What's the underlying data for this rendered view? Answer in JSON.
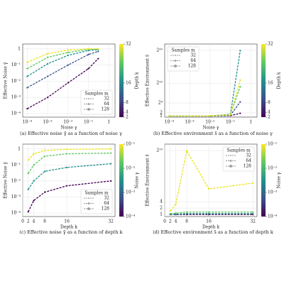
{
  "chart_data": [
    {
      "type": "line",
      "caption": "(a) Effective noise γ̃ as a function of noise γ",
      "xlabel": "Noise  γ",
      "ylabel": "Effective Noise  γ̃",
      "xlog": true,
      "ylog": true,
      "grid": true,
      "x": [
        0.0001,
        0.001,
        0.01,
        0.1,
        0.3
      ],
      "xlim": [
        6e-05,
        2
      ],
      "xticks": [
        {
          "value": 0.0001,
          "label": "10⁻⁴"
        },
        {
          "value": 0.001,
          "label": "10⁻³"
        },
        {
          "value": 0.01,
          "label": "10⁻²"
        },
        {
          "value": 0.1,
          "label": "10⁻¹"
        },
        1
      ],
      "ylim": [
        6e-05,
        2
      ],
      "yticks": [
        {
          "value": 0.0001,
          "label": "10⁻⁴"
        },
        {
          "value": 0.001,
          "label": "10⁻³"
        },
        {
          "value": 0.01,
          "label": "10⁻²"
        },
        {
          "value": 0.1,
          "label": "10⁻¹"
        },
        1
      ],
      "series": [
        {
          "color": "#440154",
          "values": [
            0.0002,
            0.001,
            0.008,
            0.06,
            0.25
          ]
        },
        {
          "color": "#3b528b",
          "values": [
            0.004,
            0.02,
            0.1,
            0.45,
            0.7
          ]
        },
        {
          "color": "#21918c",
          "values": [
            0.02,
            0.12,
            0.4,
            0.8,
            0.9
          ]
        },
        {
          "color": "#5ec962",
          "values": [
            0.06,
            0.3,
            0.6,
            0.95,
            0.95
          ]
        },
        {
          "color": "#e8e419",
          "values": [
            0.15,
            0.5,
            0.85,
            1,
            1
          ]
        }
      ],
      "legend_title": "Samples  m",
      "legend_entries": [
        32,
        64,
        128
      ],
      "legend_position": "lower right",
      "colorbar": {
        "label": "Depth  k",
        "lim": [
          2,
          32
        ],
        "log": false,
        "ticks": [
          2,
          4,
          8,
          16,
          32
        ]
      }
    },
    {
      "type": "line",
      "caption": "(b) Effective environment s̃ as a function of noise γ",
      "xlabel": "Noise  γ",
      "ylabel": "Effective Environment  s̃",
      "xlog": true,
      "ylog": true,
      "grid": true,
      "x": [
        0.0001,
        0.001,
        0.01,
        0.1,
        0.3
      ],
      "xlim": [
        6e-05,
        2
      ],
      "xticks": [
        {
          "value": 0.0001,
          "label": "10⁻⁴"
        },
        {
          "value": 0.001,
          "label": "10⁻³"
        },
        {
          "value": 0.01,
          "label": "10⁻²"
        },
        {
          "value": 0.1,
          "label": "10⁻¹"
        },
        1
      ],
      "ylim": [
        0.8,
        4000000
      ],
      "yticks": [
        1,
        2,
        {
          "value": 16,
          "label": "2⁴"
        },
        {
          "value": 1024,
          "label": "2¹⁰"
        },
        {
          "value": 1048576,
          "label": "2²⁰"
        }
      ],
      "series": [
        {
          "color": "#440154",
          "values": [
            1,
            1,
            1,
            1.1,
            1.8
          ]
        },
        {
          "color": "#3b528b",
          "values": [
            1,
            1,
            1,
            1.2,
            20
          ]
        },
        {
          "color": "#21918c",
          "values": [
            1,
            1,
            1.05,
            1.5,
            1000000
          ]
        },
        {
          "color": "#5ec962",
          "values": [
            1,
            1,
            1.05,
            1.4,
            500
          ]
        },
        {
          "color": "#e8e419",
          "values": [
            1,
            1,
            1.05,
            1.3,
            2000
          ]
        }
      ],
      "legend_title": "Samples  m",
      "legend_entries": [
        32,
        64,
        128
      ],
      "legend_position": "upper left",
      "colorbar": {
        "label": "Depth  k",
        "lim": [
          2,
          32
        ],
        "log": false,
        "ticks": [
          2,
          4,
          8,
          16,
          32
        ]
      }
    },
    {
      "type": "line",
      "caption": "(c) Effective noise γ̃ as a function of depth k",
      "xlabel": "Depth  k",
      "ylabel": "Effective Noise  γ̃",
      "xlog": false,
      "ylog": true,
      "grid": true,
      "x": [
        2,
        4,
        8,
        16,
        32
      ],
      "xlim": [
        0,
        33.5
      ],
      "xticks": [
        0,
        2,
        4,
        8,
        16,
        32
      ],
      "ylim": [
        6e-05,
        2
      ],
      "yticks": [
        {
          "value": 0.0001,
          "label": "10⁻⁴"
        },
        {
          "value": 0.001,
          "label": "10⁻³"
        },
        {
          "value": 0.01,
          "label": "10⁻²"
        },
        {
          "value": 0.1,
          "label": "10⁻¹"
        },
        1
      ],
      "series": [
        {
          "color": "#440154",
          "values": [
            0.00012,
            0.0006,
            0.002,
            0.005,
            0.01
          ]
        },
        {
          "color": "#21918c",
          "values": [
            0.003,
            0.01,
            0.04,
            0.07,
            0.12
          ]
        },
        {
          "color": "#5ec962",
          "values": [
            0.03,
            0.1,
            0.35,
            0.5,
            0.55
          ]
        },
        {
          "color": "#e8e419",
          "values": [
            0.2,
            0.5,
            0.8,
            0.95,
            1
          ]
        }
      ],
      "legend_title": "Samples  m",
      "legend_entries": [
        32,
        64,
        128
      ],
      "legend_position": "lower right",
      "colorbar": {
        "label": "Noise  γ",
        "lim": [
          0.0001,
          0.1
        ],
        "log": true,
        "ticks": [
          {
            "value": 0.0001,
            "label": "10⁻⁴"
          },
          {
            "value": 0.001,
            "label": "10⁻³"
          },
          {
            "value": 0.01,
            "label": "10⁻²"
          },
          {
            "value": 0.1,
            "label": "10⁻¹"
          }
        ]
      }
    },
    {
      "type": "line",
      "caption": "(d) Effective environment s̃ as a function of depth k",
      "xlabel": "Depth  k",
      "ylabel": "Effective Environment  s̃",
      "xlog": false,
      "ylog": true,
      "grid": true,
      "x": [
        2,
        4,
        8,
        16,
        32
      ],
      "xlim": [
        0,
        33.5
      ],
      "xticks": [
        0,
        2,
        4,
        8,
        16,
        32
      ],
      "ylim": [
        0.8,
        2048
      ],
      "yticks": [
        1,
        2,
        4,
        {
          "value": 1024,
          "label": "2¹⁰"
        }
      ],
      "series": [
        {
          "color": "#440154",
          "values": [
            1,
            1,
            1,
            1,
            1
          ]
        },
        {
          "color": "#21918c",
          "values": [
            1.02,
            1.05,
            1.1,
            1.1,
            1.1
          ]
        },
        {
          "color": "#5ec962",
          "values": [
            1.1,
            1.15,
            1.3,
            1.3,
            1.3
          ]
        },
        {
          "color": "#e8e419",
          "values": [
            1.5,
            3,
            1000,
            16,
            30
          ]
        }
      ],
      "legend_title": "Samples  m",
      "legend_entries": [
        32,
        64,
        128
      ],
      "legend_position": "upper right",
      "colorbar": {
        "label": "Noise  γ",
        "lim": [
          0.0001,
          0.1
        ],
        "log": true,
        "ticks": [
          {
            "value": 0.0001,
            "label": "10⁻⁴"
          },
          {
            "value": 0.001,
            "label": "10⁻³"
          },
          {
            "value": 0.01,
            "label": "10⁻²"
          },
          {
            "value": 0.1,
            "label": "10⁻¹"
          }
        ]
      }
    }
  ]
}
